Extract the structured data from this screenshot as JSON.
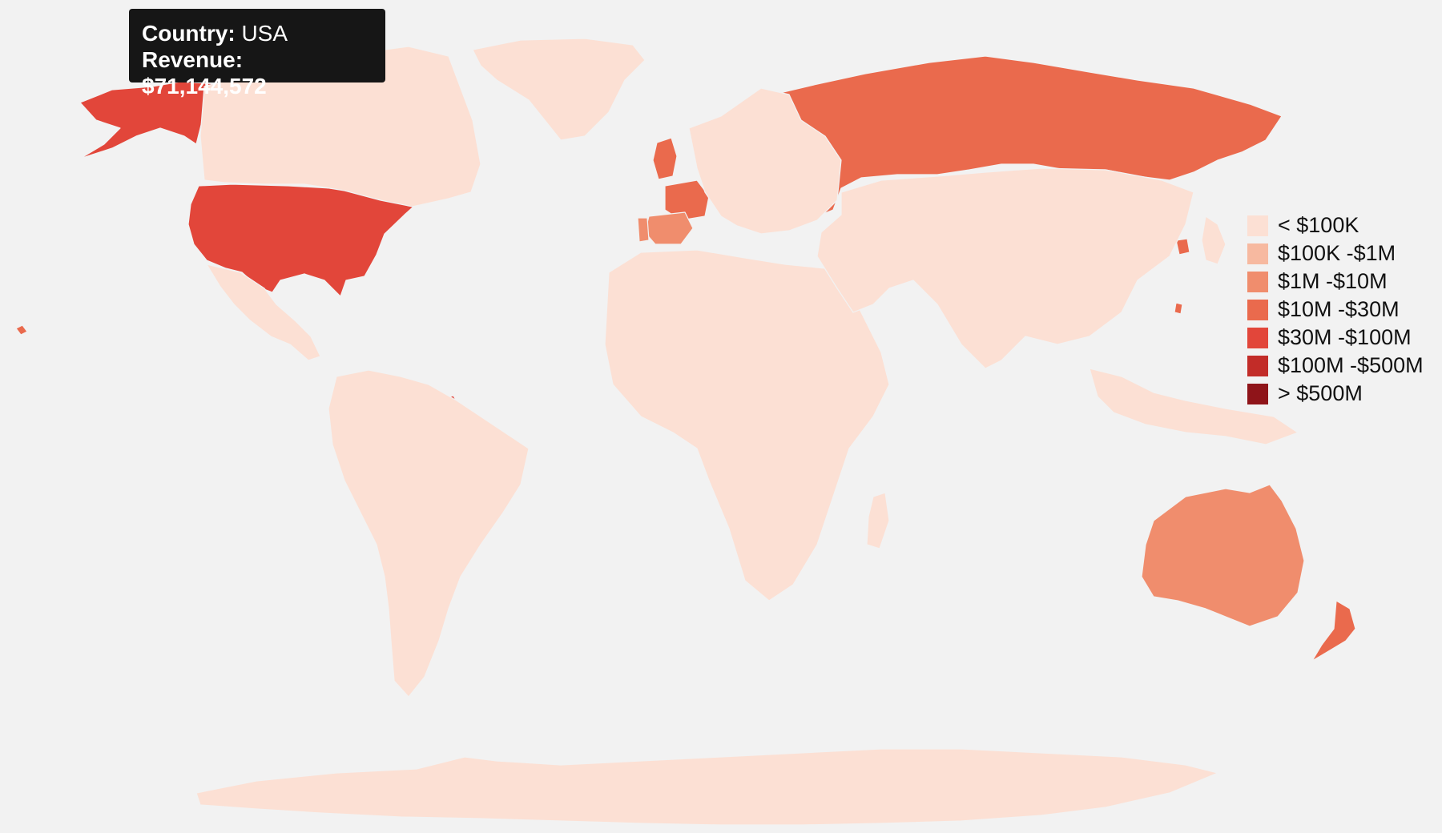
{
  "tooltip": {
    "country_label": "Country:",
    "country_value": "USA",
    "revenue_label": "Revenue:",
    "revenue_value": "$71,144,572"
  },
  "legend": [
    {
      "label": "< $100K",
      "color": "#fce0d4"
    },
    {
      "label": "$100K -$1M",
      "color": "#f7b9a0"
    },
    {
      "label": "$1M -$10M",
      "color": "#f08d6d"
    },
    {
      "label": "$10M -$30M",
      "color": "#ea6a4d"
    },
    {
      "label": "$30M -$100M",
      "color": "#e2463a"
    },
    {
      "label": "$100M -$500M",
      "color": "#c22c28"
    },
    {
      "label": "> $500M",
      "color": "#8f1419"
    }
  ],
  "map_data": {
    "hovered_country": "USA",
    "countries": [
      {
        "name": "USA",
        "tier": 4
      },
      {
        "name": "Alaska",
        "tier": 4
      },
      {
        "name": "Russia",
        "tier": 3
      },
      {
        "name": "UK",
        "tier": 3
      },
      {
        "name": "France",
        "tier": 3
      },
      {
        "name": "Germany",
        "tier": 2
      },
      {
        "name": "Spain",
        "tier": 2
      },
      {
        "name": "Portugal",
        "tier": 2
      },
      {
        "name": "Argentina",
        "tier": 2
      },
      {
        "name": "Australia",
        "tier": 2
      },
      {
        "name": "New Zealand",
        "tier": 3
      },
      {
        "name": "South Korea",
        "tier": 3
      },
      {
        "name": "Taiwan",
        "tier": 3
      },
      {
        "name": "French Guiana",
        "tier": 4
      },
      {
        "name": "Hawaii",
        "tier": 3
      },
      {
        "name": "Canada",
        "tier": 0
      },
      {
        "name": "Greenland",
        "tier": 0
      },
      {
        "name": "Mexico",
        "tier": 0
      },
      {
        "name": "South America",
        "tier": 0
      },
      {
        "name": "Africa",
        "tier": 0
      },
      {
        "name": "Europe",
        "tier": 0
      },
      {
        "name": "Asia",
        "tier": 0
      },
      {
        "name": "Japan",
        "tier": 0
      },
      {
        "name": "Southeast Asia",
        "tier": 0
      },
      {
        "name": "Madagascar",
        "tier": 0
      },
      {
        "name": "Antarctica",
        "tier": 0
      }
    ]
  }
}
